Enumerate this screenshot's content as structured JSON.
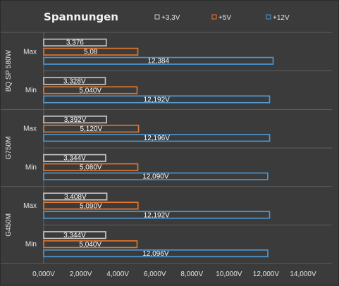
{
  "chart_data": {
    "type": "bar",
    "orientation": "horizontal",
    "title": "Spannungen",
    "legend": {
      "placement": "top",
      "entries": [
        {
          "name": "+3,3V",
          "color": "#c8c8c8"
        },
        {
          "name": "+5V",
          "color": "#e8782c"
        },
        {
          "name": "+12V",
          "color": "#4a9ad8"
        }
      ]
    },
    "groups": [
      "BQ SP 580W",
      "G750M",
      "G450M"
    ],
    "categories": [
      {
        "group": "BQ SP 580W",
        "label": "Max"
      },
      {
        "group": "BQ SP 580W",
        "label": "Min"
      },
      {
        "group": "G750M",
        "label": "Max"
      },
      {
        "group": "G750M",
        "label": "Min"
      },
      {
        "group": "G450M",
        "label": "Max"
      },
      {
        "group": "G450M",
        "label": "Min"
      }
    ],
    "series": [
      {
        "name": "+3,3V",
        "values": [
          3.376,
          3.328,
          3.392,
          3.344,
          3.408,
          3.344
        ],
        "labels": [
          "3,376",
          "3,328V",
          "3,392V",
          "3,344V",
          "3,408V",
          "3,344V"
        ]
      },
      {
        "name": "+5V",
        "values": [
          5.08,
          5.04,
          5.12,
          5.08,
          5.09,
          5.04
        ],
        "labels": [
          "5,08",
          "5,040V",
          "5,120V",
          "5,080V",
          "5,090V",
          "5,040V"
        ]
      },
      {
        "name": "+12V",
        "values": [
          12.384,
          12.192,
          12.196,
          12.09,
          12.192,
          12.096
        ],
        "labels": [
          "12,384",
          "12,192V",
          "12,196V",
          "12,090V",
          "12,192V",
          "12,096V"
        ]
      }
    ],
    "xlim": [
      0,
      14
    ],
    "xticks": [
      0,
      2,
      4,
      6,
      8,
      10,
      12,
      14
    ],
    "xtick_labels": [
      "0,000V",
      "2,000V",
      "4,000V",
      "6,000V",
      "8,000V",
      "10,000V",
      "12,000V",
      "14,000V"
    ],
    "grid": "horizontal separators between categories"
  }
}
